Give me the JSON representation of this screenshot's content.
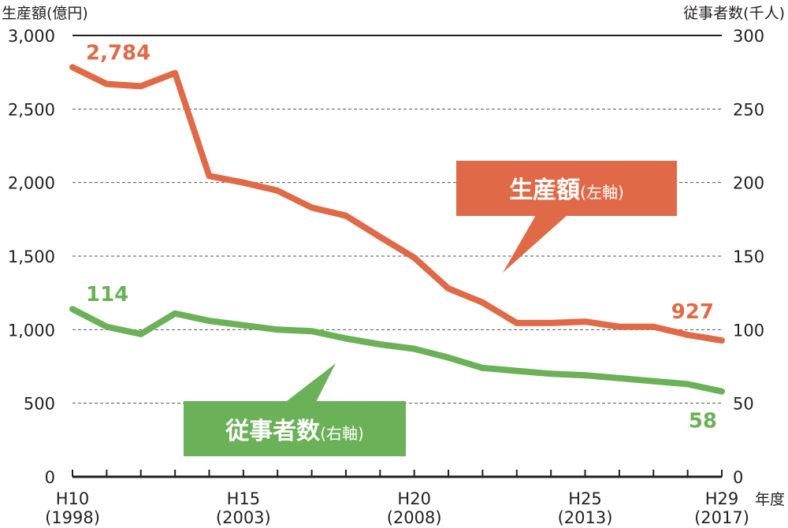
{
  "chart_data": {
    "type": "line",
    "left_axis_title": "生産額(億円)",
    "right_axis_title": "従事者数(千人)",
    "x_axis_title": "年度",
    "left_ylim": [
      0,
      3000
    ],
    "right_ylim": [
      0,
      300
    ],
    "left_ticks": [
      "0",
      "500",
      "1,000",
      "1,500",
      "2,000",
      "2,500",
      "3,000"
    ],
    "right_ticks": [
      "0",
      "50",
      "100",
      "150",
      "200",
      "250",
      "300"
    ],
    "years": [
      1998,
      1999,
      2000,
      2001,
      2002,
      2003,
      2004,
      2005,
      2006,
      2007,
      2008,
      2009,
      2010,
      2011,
      2012,
      2013,
      2014,
      2015,
      2016,
      2017
    ],
    "x_labels": [
      {
        "year": 1998,
        "line1": "H10",
        "line2": "(1998)"
      },
      {
        "year": 2003,
        "line1": "H15",
        "line2": "(2003)"
      },
      {
        "year": 2008,
        "line1": "H20",
        "line2": "(2008)"
      },
      {
        "year": 2013,
        "line1": "H25",
        "line2": "(2013)"
      },
      {
        "year": 2017,
        "line1": "H29",
        "line2": "(2017)"
      }
    ],
    "series": [
      {
        "name": "生産額",
        "axis_note": "(左軸)",
        "axis": "left",
        "color": "#e06a48",
        "values": [
          2784,
          2670,
          2655,
          2745,
          2045,
          2000,
          1945,
          1830,
          1775,
          1630,
          1490,
          1280,
          1185,
          1045,
          1045,
          1055,
          1020,
          1020,
          965,
          927
        ],
        "first_label": "2,784",
        "last_label": "927"
      },
      {
        "name": "従事者数",
        "axis_note": "(右軸)",
        "axis": "right",
        "color": "#6ab157",
        "values": [
          114,
          102,
          97,
          111,
          106,
          103,
          100,
          99,
          94,
          90,
          87,
          81,
          74,
          72,
          70,
          69,
          67,
          65,
          63,
          58
        ],
        "first_label": "114",
        "last_label": "58"
      }
    ],
    "grid": "dashed horizontal",
    "legend": "callouts"
  }
}
